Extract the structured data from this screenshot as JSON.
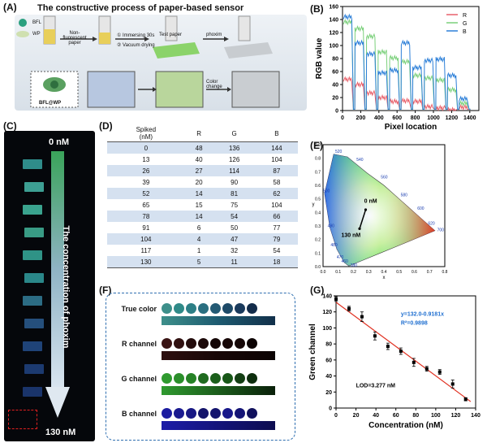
{
  "panels": {
    "a": "(A)",
    "b": "(B)",
    "c": "(C)",
    "d": "(D)",
    "e": "(E)",
    "f": "(F)",
    "g": "(G)"
  },
  "panel_a": {
    "title": "The constructive process of paper-based sensor",
    "legend_bfl": "BFL",
    "legend_wp": "WP",
    "step_nonfluor": "Non-fluorescent paper",
    "step1": "① Immersing 30s",
    "step2": "② Vacuum drying",
    "test_paper": "Test paper",
    "phoxim": "phoxim",
    "color_change": "Color change",
    "bfl_wp": "BFL@WP"
  },
  "panel_c": {
    "top_label": "0 nM",
    "bottom_label": "130 nM",
    "axis_text": "The concentration of phoxim",
    "strip_colors": [
      "#2f8c8a",
      "#3d9f93",
      "#3aa38e",
      "#399b85",
      "#2f9386",
      "#2a8789",
      "#2c6c84",
      "#254f7c",
      "#1f4378",
      "#1c3a70",
      "#1a346a"
    ]
  },
  "panel_d": {
    "headers": [
      "Spiked\n(nM)",
      "R",
      "G",
      "B"
    ],
    "rows": [
      [
        "0",
        "48",
        "136",
        "144"
      ],
      [
        "13",
        "40",
        "126",
        "104"
      ],
      [
        "26",
        "27",
        "114",
        "87"
      ],
      [
        "39",
        "20",
        "90",
        "58"
      ],
      [
        "52",
        "14",
        "81",
        "62"
      ],
      [
        "65",
        "15",
        "75",
        "104"
      ],
      [
        "78",
        "14",
        "54",
        "66"
      ],
      [
        "91",
        "6",
        "50",
        "77"
      ],
      [
        "104",
        "4",
        "47",
        "79"
      ],
      [
        "117",
        "1",
        "32",
        "54"
      ],
      [
        "130",
        "5",
        "11",
        "18"
      ]
    ]
  },
  "panel_e": {
    "label_0": "0 nM",
    "label_130": "130 nM",
    "xlabel": "x",
    "ylabel": "y",
    "x_ticks": [
      "0.0",
      "0.1",
      "0.2",
      "0.3",
      "0.4",
      "0.5",
      "0.6",
      "0.7",
      "0.8"
    ],
    "y_ticks": [
      "0.0",
      "0.1",
      "0.2",
      "0.3",
      "0.4",
      "0.5",
      "0.6",
      "0.7",
      "0.8",
      "0.9"
    ],
    "wavelengths": [
      "520",
      "540",
      "560",
      "580",
      "600",
      "620",
      "700",
      "500",
      "490",
      "480",
      "470",
      "460",
      "380"
    ]
  },
  "panel_f": {
    "rows": [
      {
        "label": "True color",
        "dots": [
          "#3d8f8a",
          "#2f8a88",
          "#2d7f86",
          "#2a6f80",
          "#245a74",
          "#1e4a68",
          "#1a3a5c",
          "#132c4a"
        ],
        "bar": "linear-gradient(90deg,#3d8f8a,#1d5a70,#12304a)"
      },
      {
        "label": "R channel",
        "dots": [
          "#3a1414",
          "#301010",
          "#230c0c",
          "#1c0909",
          "#150707",
          "#170707",
          "#150707",
          "#0c0303"
        ],
        "bar": "linear-gradient(90deg,#2e1010,#170606,#0b0303)"
      },
      {
        "label": "G channel",
        "dots": [
          "#2f9a2f",
          "#2b8f2b",
          "#268226",
          "#1f6b1f",
          "#1b5f1b",
          "#185718",
          "#143f14",
          "#0e2e0e"
        ],
        "bar": "linear-gradient(90deg,#2f9a2f,#1b5c1b,#0a200a)"
      },
      {
        "label": "B channel",
        "dots": [
          "#1c1ca0",
          "#1a1a90",
          "#181884",
          "#14146a",
          "#14146e",
          "#18188a",
          "#141476",
          "#10105c"
        ],
        "bar": "linear-gradient(90deg,#1c1ca8,#14147a,#0d0d50)"
      }
    ]
  },
  "chart_data": [
    {
      "type": "line",
      "panel": "B",
      "xlabel": "Pixel location",
      "ylabel": "RGB value",
      "xlim": [
        0,
        1500
      ],
      "ylim": [
        0,
        160
      ],
      "x_ticks": [
        0,
        200,
        400,
        600,
        800,
        1000,
        1200,
        1400
      ],
      "y_ticks": [
        0,
        20,
        40,
        60,
        80,
        100,
        120,
        140,
        160
      ],
      "legend": "top-right",
      "series": [
        {
          "name": "R",
          "color": "#e8606a",
          "values": [
            48,
            40,
            27,
            20,
            14,
            15,
            14,
            6,
            4,
            1,
            5
          ]
        },
        {
          "name": "G",
          "color": "#7bd07b",
          "values": [
            136,
            126,
            114,
            90,
            81,
            75,
            54,
            50,
            47,
            32,
            11
          ]
        },
        {
          "name": "B",
          "color": "#2c7fd8",
          "values": [
            144,
            104,
            87,
            58,
            62,
            104,
            66,
            77,
            79,
            54,
            18
          ]
        }
      ]
    },
    {
      "type": "scatter",
      "panel": "G",
      "xlabel": "Concentration (nM)",
      "ylabel": "Green channel",
      "xlim": [
        0,
        140
      ],
      "ylim": [
        0,
        140
      ],
      "x_ticks": [
        0,
        20,
        40,
        60,
        80,
        100,
        120,
        140
      ],
      "y_ticks": [
        0,
        20,
        40,
        60,
        80,
        100,
        120,
        140
      ],
      "equation": "y=132.0-0.9181x",
      "r2": "R²=0.9898",
      "lod": "LOD=3.277 nM",
      "points": [
        {
          "x": 0,
          "y": 136,
          "err": 3
        },
        {
          "x": 13,
          "y": 124,
          "err": 3
        },
        {
          "x": 26,
          "y": 114,
          "err": 6
        },
        {
          "x": 39,
          "y": 90,
          "err": 5
        },
        {
          "x": 52,
          "y": 77,
          "err": 4
        },
        {
          "x": 65,
          "y": 71,
          "err": 4
        },
        {
          "x": 78,
          "y": 57,
          "err": 5
        },
        {
          "x": 91,
          "y": 49,
          "err": 3
        },
        {
          "x": 104,
          "y": 45,
          "err": 3
        },
        {
          "x": 117,
          "y": 30,
          "err": 5
        },
        {
          "x": 130,
          "y": 11,
          "err": 2
        }
      ],
      "fit": {
        "intercept": 132.0,
        "slope": -0.9181
      },
      "point_color": "#000000",
      "line_color": "#e03020"
    }
  ]
}
